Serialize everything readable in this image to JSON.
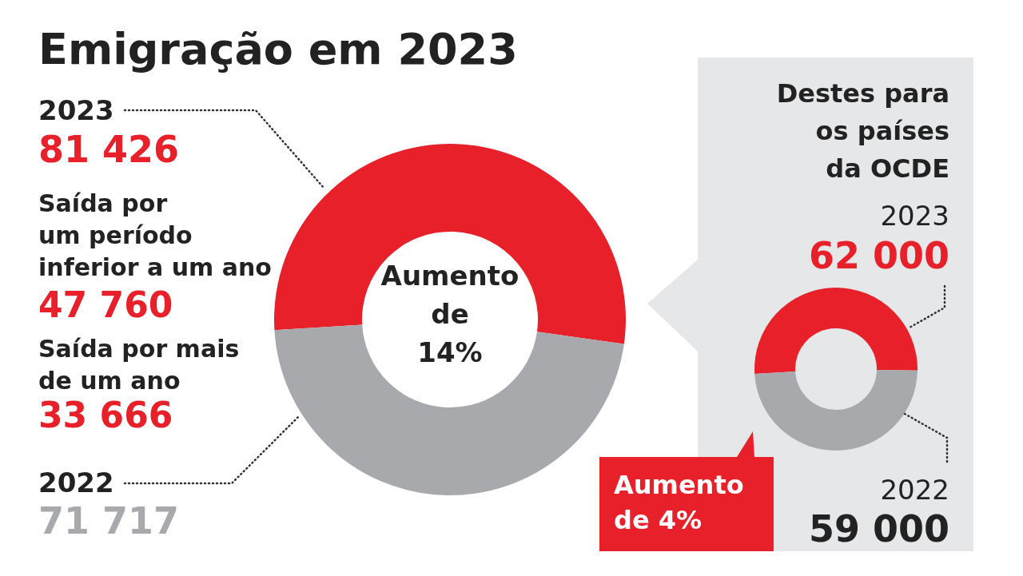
{
  "chart_data": [
    {
      "type": "donut",
      "title": "Emigração em 2023",
      "categories": [
        "2023",
        "2022"
      ],
      "values": [
        81426,
        71717
      ],
      "value_labels": [
        "81 426",
        "71 717"
      ],
      "colors": [
        "#e8202a",
        "#a7a9ac"
      ],
      "annotations": [
        "Saída por um período inferior a um ano",
        "47 760",
        "Saída por mais de um ano",
        "33 666",
        "Aumento de 14%"
      ]
    },
    {
      "type": "donut",
      "title": "Destes para os países da OCDE",
      "categories": [
        "2023",
        "2022"
      ],
      "values": [
        62000,
        59000
      ],
      "value_labels": [
        "62 000",
        "59 000"
      ],
      "colors": [
        "#e8202a",
        "#a7a9ac"
      ],
      "annotations": [
        "Aumento de 4%"
      ]
    }
  ]
}
